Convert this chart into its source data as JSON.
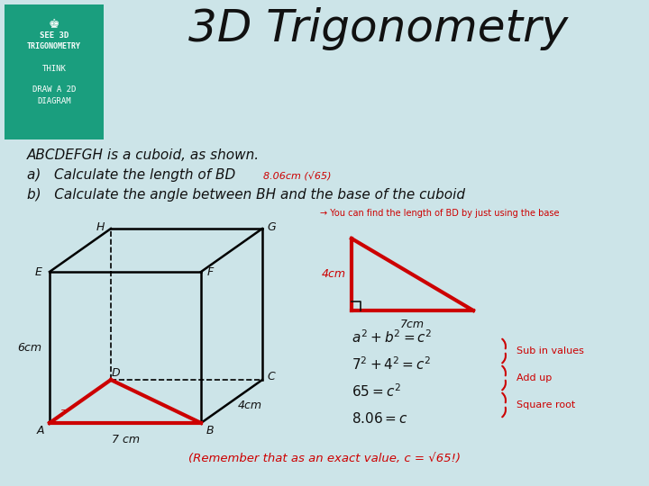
{
  "bg_color": "#cce4e8",
  "title": "3D Trigonometry",
  "title_fontsize": 32,
  "badge_color": "#1a9e7e",
  "red_color": "#cc0000",
  "dark_color": "#111111",
  "problem_line1": "ABCDEFGH is a cuboid, as shown.",
  "problem_line2_pre": "a)   Calculate the length of BD",
  "problem_line2_ans": "  8.06cm (√65)",
  "problem_line3": "b)   Calculate the angle between BH and the base of the cuboid",
  "hint_text": "→ You can find the length of BD by just using the base",
  "bottom_note": "(Remember that as an exact value, c = √65!)"
}
